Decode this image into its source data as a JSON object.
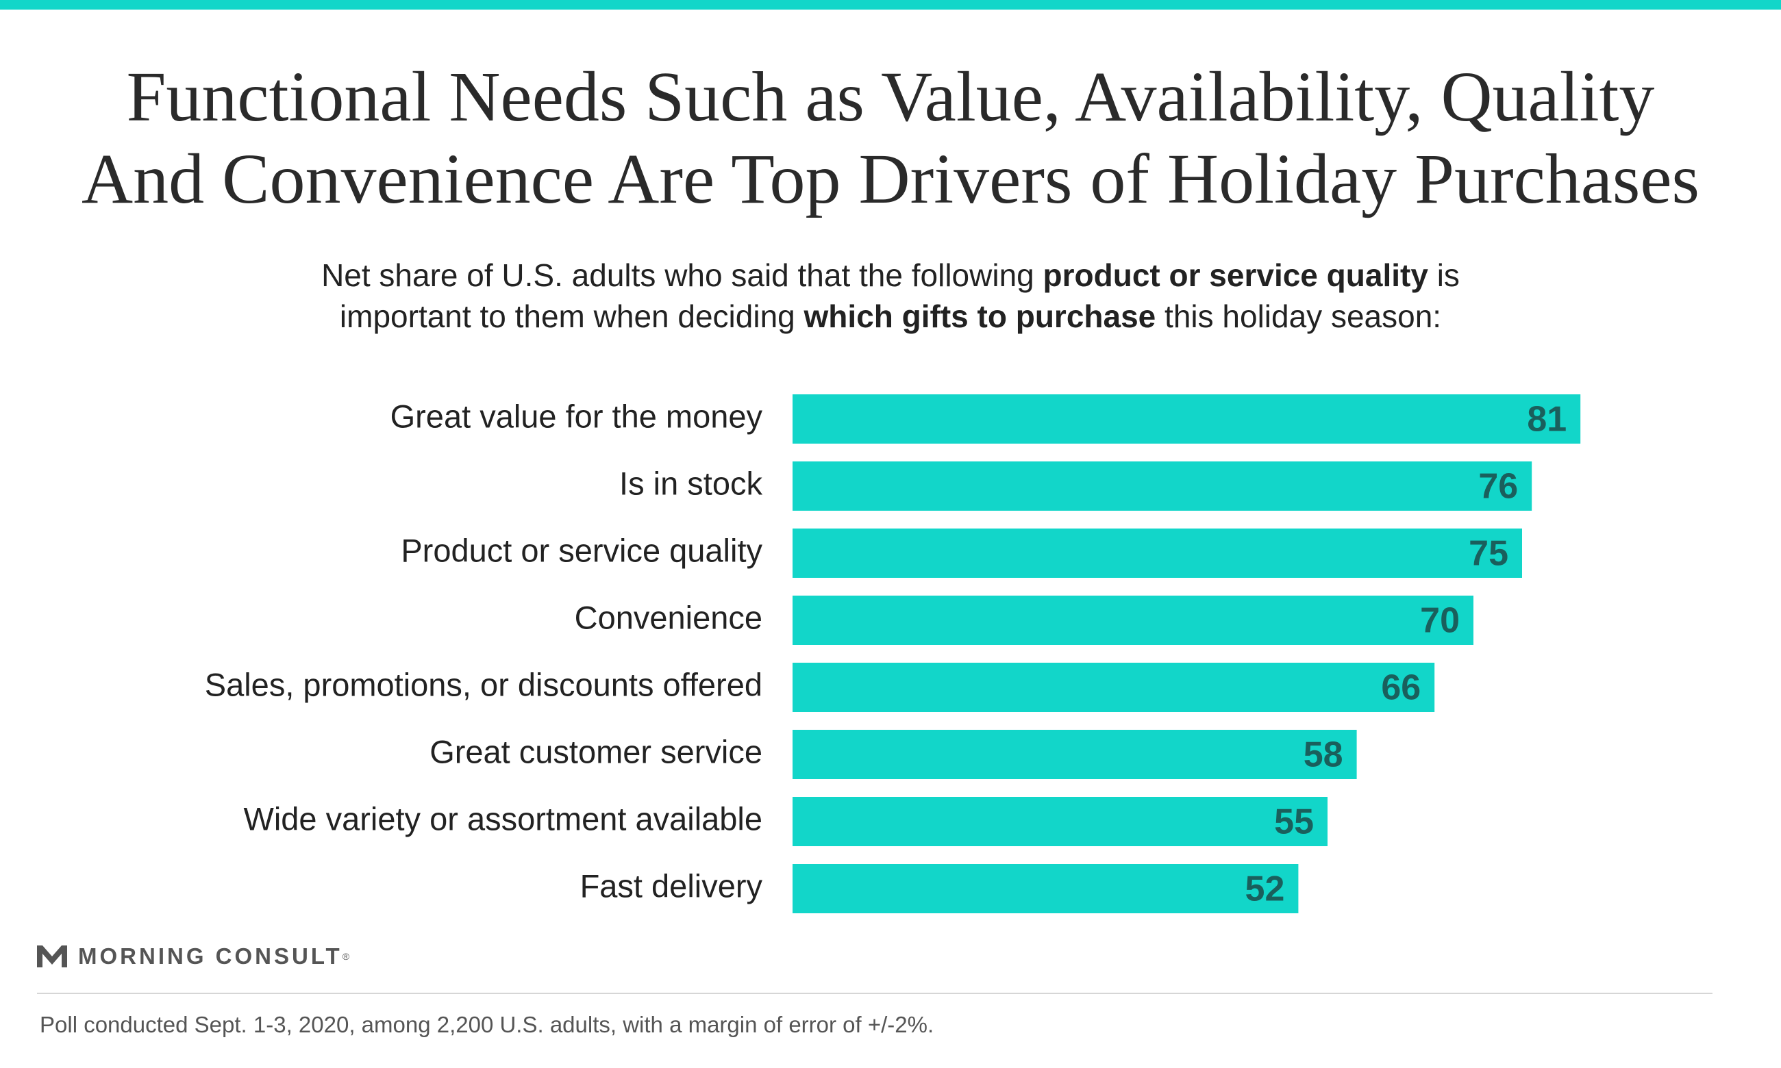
{
  "colors": {
    "accent": "#12d6c9",
    "value_text": "#1a5f5c"
  },
  "title": {
    "line1": "Functional Needs Such as Value, Availability, Quality",
    "line2": "And Convenience Are Top Drivers of Holiday Purchases"
  },
  "subtitle": {
    "l1_a": "Net share of U.S. adults who said that the following ",
    "l1_b": "product or service quality",
    "l1_c": " is",
    "l2_a": "important to them when deciding ",
    "l2_b": "which gifts to purchase",
    "l2_c": " this holiday season:"
  },
  "chart_data": {
    "type": "bar",
    "orientation": "horizontal",
    "categories": [
      "Great value for the money",
      "Is in stock",
      "Product or service quality",
      "Convenience",
      "Sales, promotions, or discounts offered",
      "Great customer service",
      "Wide variety or assortment available",
      "Fast delivery"
    ],
    "values": [
      81,
      76,
      75,
      70,
      66,
      58,
      55,
      52
    ],
    "xlim": [
      0,
      100
    ],
    "grid": false,
    "legend": "none",
    "data_labels": true
  },
  "brand": {
    "name": "MORNING CONSULT",
    "logo_icon": "morning-consult-m-icon"
  },
  "footnote": "Poll conducted Sept. 1-3, 2020, among 2,200 U.S. adults, with a margin of error of +/-2%."
}
